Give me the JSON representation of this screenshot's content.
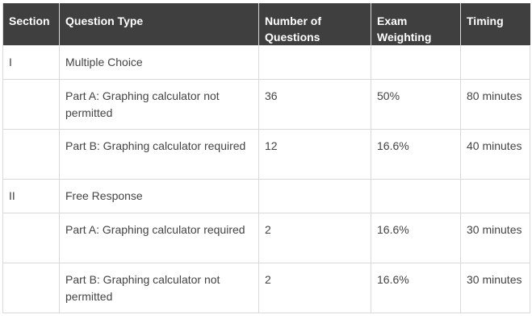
{
  "table": {
    "headers": {
      "section": "Section",
      "question_type": "Question Type",
      "number_of_questions": "Number of Questions",
      "exam_weighting": "Exam Weighting",
      "timing": "Timing"
    },
    "rows": [
      {
        "section": "I",
        "question_type": "Multiple Choice",
        "number_of_questions": "",
        "exam_weighting": "",
        "timing": ""
      },
      {
        "section": "",
        "question_type": "Part A: Graphing calculator not permitted",
        "number_of_questions": "36",
        "exam_weighting": "50%",
        "timing": "80 minutes"
      },
      {
        "section": "",
        "question_type": "Part B: Graphing calculator required",
        "number_of_questions": "12",
        "exam_weighting": "16.6%",
        "timing": "40 minutes"
      },
      {
        "section": "II",
        "question_type": "Free Response",
        "number_of_questions": "",
        "exam_weighting": "",
        "timing": ""
      },
      {
        "section": "",
        "question_type": "Part A: Graphing calculator required",
        "number_of_questions": "2",
        "exam_weighting": "16.6%",
        "timing": "30 minutes"
      },
      {
        "section": "",
        "question_type": "Part B: Graphing calculator not permitted",
        "number_of_questions": "2",
        "exam_weighting": "16.6%",
        "timing": "30 minutes"
      }
    ]
  }
}
